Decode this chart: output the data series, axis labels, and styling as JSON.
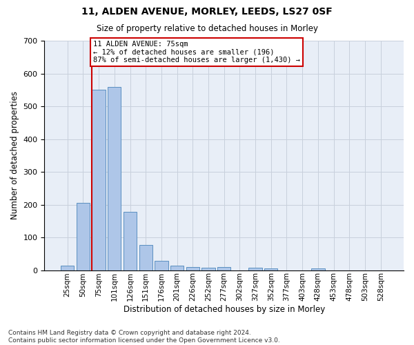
{
  "title_line1": "11, ALDEN AVENUE, MORLEY, LEEDS, LS27 0SF",
  "title_line2": "Size of property relative to detached houses in Morley",
  "xlabel": "Distribution of detached houses by size in Morley",
  "ylabel": "Number of detached properties",
  "footnote": "Contains HM Land Registry data © Crown copyright and database right 2024.\nContains public sector information licensed under the Open Government Licence v3.0.",
  "bin_labels": [
    "25sqm",
    "50sqm",
    "75sqm",
    "101sqm",
    "126sqm",
    "151sqm",
    "176sqm",
    "201sqm",
    "226sqm",
    "252sqm",
    "277sqm",
    "302sqm",
    "327sqm",
    "352sqm",
    "377sqm",
    "403sqm",
    "428sqm",
    "453sqm",
    "478sqm",
    "503sqm",
    "528sqm"
  ],
  "bar_values": [
    13,
    205,
    551,
    558,
    178,
    77,
    29,
    13,
    10,
    8,
    9,
    0,
    8,
    6,
    0,
    0,
    5,
    0,
    0,
    0,
    0
  ],
  "bar_color": "#aec6e8",
  "bar_edge_color": "#5a8fc0",
  "vline_bin_index": 2,
  "ylim": [
    0,
    700
  ],
  "yticks": [
    0,
    100,
    200,
    300,
    400,
    500,
    600,
    700
  ],
  "annotation_line1": "11 ALDEN AVENUE: 75sqm",
  "annotation_line2": "← 12% of detached houses are smaller (196)",
  "annotation_line3": "87% of semi-detached houses are larger (1,430) →",
  "annotation_box_facecolor": "#ffffff",
  "annotation_box_edgecolor": "#cc0000",
  "vline_color": "#cc0000",
  "plot_bg_color": "#e8eef7",
  "grid_color": "#c8d0dc"
}
